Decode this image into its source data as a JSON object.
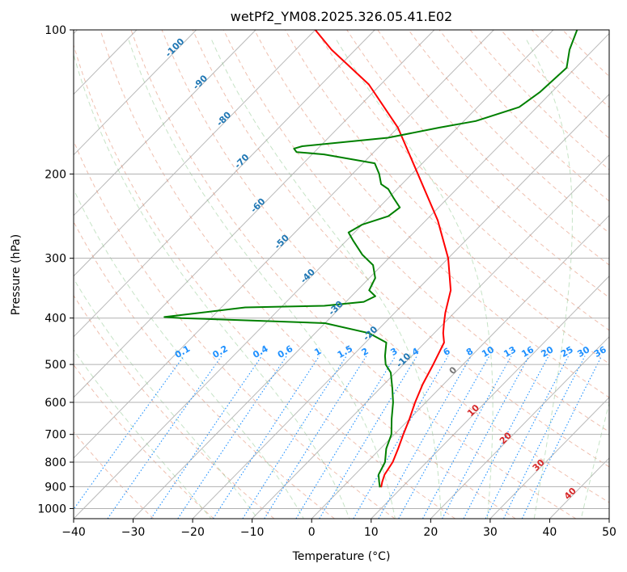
{
  "chart_data": {
    "type": "line",
    "subtype": "skew-t log-p diagram",
    "title": "wetPf2_YM08.2025.326.05.41.E02",
    "xlabel": "Temperature (°C)",
    "ylabel": "Pressure (hPa)",
    "xlim": [
      -40,
      50
    ],
    "ylim": [
      1050,
      100
    ],
    "y_scale": "log",
    "grid": true,
    "x_ticks": [
      -40,
      -30,
      -20,
      -10,
      0,
      10,
      20,
      30,
      40,
      50
    ],
    "x_tick_labels": [
      "−40",
      "−30",
      "−20",
      "−10",
      "0",
      "10",
      "20",
      "30",
      "40",
      "50"
    ],
    "y_ticks": [
      1000,
      900,
      800,
      700,
      600,
      500,
      400,
      300,
      200,
      100
    ],
    "y_tick_labels": [
      "1000",
      "900",
      "800",
      "700",
      "600",
      "500",
      "400",
      "300",
      "200",
      "100"
    ],
    "series": [
      {
        "color": "#ff0000",
        "points": [
          [
            6.5,
            903
          ],
          [
            5.8,
            880
          ],
          [
            5.0,
            850
          ],
          [
            4.3,
            800
          ],
          [
            3.0,
            750
          ],
          [
            1.5,
            700
          ],
          [
            0,
            650
          ],
          [
            -1.8,
            600
          ],
          [
            -3.5,
            550
          ],
          [
            -5.0,
            500
          ],
          [
            -6.8,
            450
          ],
          [
            -8.5,
            430
          ],
          [
            -10.0,
            410
          ],
          [
            -11.5,
            390
          ],
          [
            -14.3,
            350
          ],
          [
            -20.0,
            300
          ],
          [
            -28.0,
            250
          ],
          [
            -39.0,
            200
          ],
          [
            -50.0,
            160
          ],
          [
            -62.0,
            130
          ],
          [
            -74.0,
            110
          ],
          [
            -80.0,
            100
          ]
        ]
      },
      {
        "color": "#008000",
        "points": [
          [
            6.3,
            903
          ],
          [
            5.3,
            880
          ],
          [
            4.0,
            850
          ],
          [
            3.0,
            800
          ],
          [
            1.0,
            750
          ],
          [
            -0.5,
            700
          ],
          [
            -3.0,
            650
          ],
          [
            -5.5,
            600
          ],
          [
            -8.0,
            560
          ],
          [
            -10.8,
            520
          ],
          [
            -13.0,
            500
          ],
          [
            -14.5,
            480
          ],
          [
            -16.5,
            450
          ],
          [
            -21.0,
            430
          ],
          [
            -30.0,
            410
          ],
          [
            -55.0,
            400
          ],
          [
            -58.0,
            398
          ],
          [
            -46.0,
            380
          ],
          [
            -33.0,
            377
          ],
          [
            -27.0,
            370
          ],
          [
            -26.0,
            360
          ],
          [
            -28.0,
            350
          ],
          [
            -28.5,
            340
          ],
          [
            -29.0,
            330
          ],
          [
            -31.5,
            310
          ],
          [
            -35.0,
            295
          ],
          [
            -39.0,
            275
          ],
          [
            -41.0,
            265
          ],
          [
            -40.0,
            255
          ],
          [
            -37.0,
            245
          ],
          [
            -36.5,
            235
          ],
          [
            -39.0,
            225
          ],
          [
            -41.5,
            215
          ],
          [
            -43.5,
            210
          ],
          [
            -45.5,
            200
          ],
          [
            -48.0,
            190
          ],
          [
            -58.0,
            182
          ],
          [
            -63.0,
            180
          ],
          [
            -64.0,
            177
          ],
          [
            -63.0,
            175
          ],
          [
            -50.0,
            168
          ],
          [
            -43.0,
            160
          ],
          [
            -38.0,
            155
          ],
          [
            -33.0,
            145
          ],
          [
            -32.0,
            135
          ],
          [
            -31.5,
            120
          ],
          [
            -34.0,
            110
          ],
          [
            -36.0,
            100
          ]
        ]
      }
    ],
    "background_lines": {
      "dry_adiabat_colors": [
        "#e08060"
      ],
      "moist_adiabat_colors": [
        "#80c080"
      ],
      "mixing_ratio_color": "#1e90ff",
      "isotherm_color": "#808080"
    },
    "isotherm_labels": [
      {
        "text": "-100",
        "value": -100
      },
      {
        "text": "-90",
        "value": -90
      },
      {
        "text": "-80",
        "value": -80
      },
      {
        "text": "-70",
        "value": -70
      },
      {
        "text": "-60",
        "value": -60
      },
      {
        "text": "-50",
        "value": -50
      },
      {
        "text": "-40",
        "value": -40
      },
      {
        "text": "-30",
        "value": -30
      },
      {
        "text": "-20",
        "value": -20
      },
      {
        "text": "-10",
        "value": -10
      }
    ],
    "mixing_ratio_labels": [
      "0.1",
      "0.2",
      "0.4",
      "0.6",
      "1",
      "1.5",
      "2",
      "3",
      "4",
      "6",
      "8",
      "10",
      "13",
      "16",
      "20",
      "25",
      "30",
      "36"
    ],
    "freezing_label": "0",
    "warm_isotherm_labels": [
      "10",
      "20",
      "30",
      "40"
    ]
  }
}
